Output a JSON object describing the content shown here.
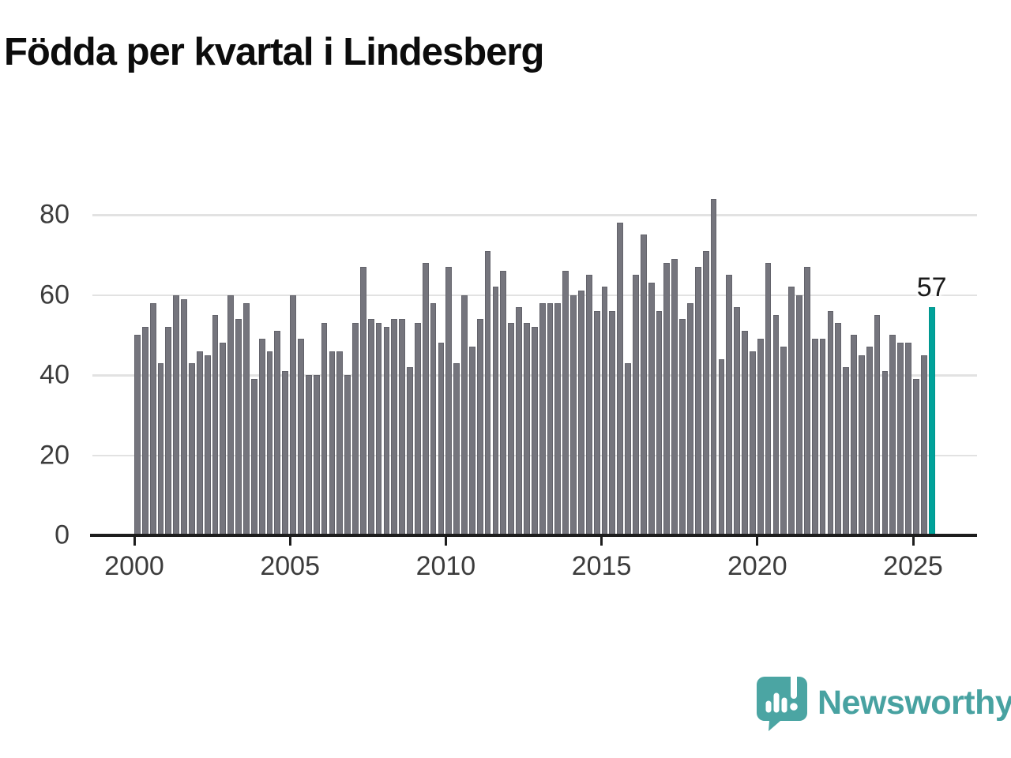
{
  "title": "Födda per kvartal i Lindesberg",
  "chart_data": {
    "type": "bar",
    "title": "Födda per kvartal i Lindesberg",
    "x_start": "2000-Q1",
    "frequency": "quarterly",
    "values": [
      50,
      52,
      58,
      43,
      52,
      60,
      59,
      43,
      46,
      45,
      55,
      48,
      60,
      54,
      58,
      39,
      49,
      46,
      51,
      41,
      60,
      49,
      40,
      40,
      53,
      46,
      46,
      40,
      53,
      67,
      54,
      53,
      52,
      54,
      54,
      42,
      53,
      68,
      58,
      48,
      67,
      43,
      60,
      47,
      54,
      71,
      62,
      66,
      53,
      57,
      53,
      52,
      58,
      58,
      58,
      66,
      60,
      61,
      65,
      56,
      62,
      56,
      78,
      43,
      65,
      75,
      63,
      56,
      68,
      69,
      54,
      58,
      67,
      71,
      84,
      44,
      65,
      57,
      51,
      46,
      49,
      68,
      55,
      47,
      62,
      60,
      67,
      49,
      49,
      56,
      53,
      42,
      50,
      45,
      47,
      55,
      41,
      50,
      48,
      48,
      39,
      45,
      57
    ],
    "highlight_last": true,
    "highlight_value_label": "57",
    "x_tick_labels": [
      "2000",
      "2005",
      "2010",
      "2015",
      "2020",
      "2025"
    ],
    "y_ticks": [
      0,
      20,
      40,
      60,
      80
    ],
    "ylim": [
      0,
      86
    ],
    "grid": "horizontal",
    "legend": "none",
    "bar_color": "#75757d",
    "highlight_color": "#00a29a"
  },
  "branding": {
    "logo_text": "Newsworthy",
    "logo_color": "#48a2a1"
  }
}
